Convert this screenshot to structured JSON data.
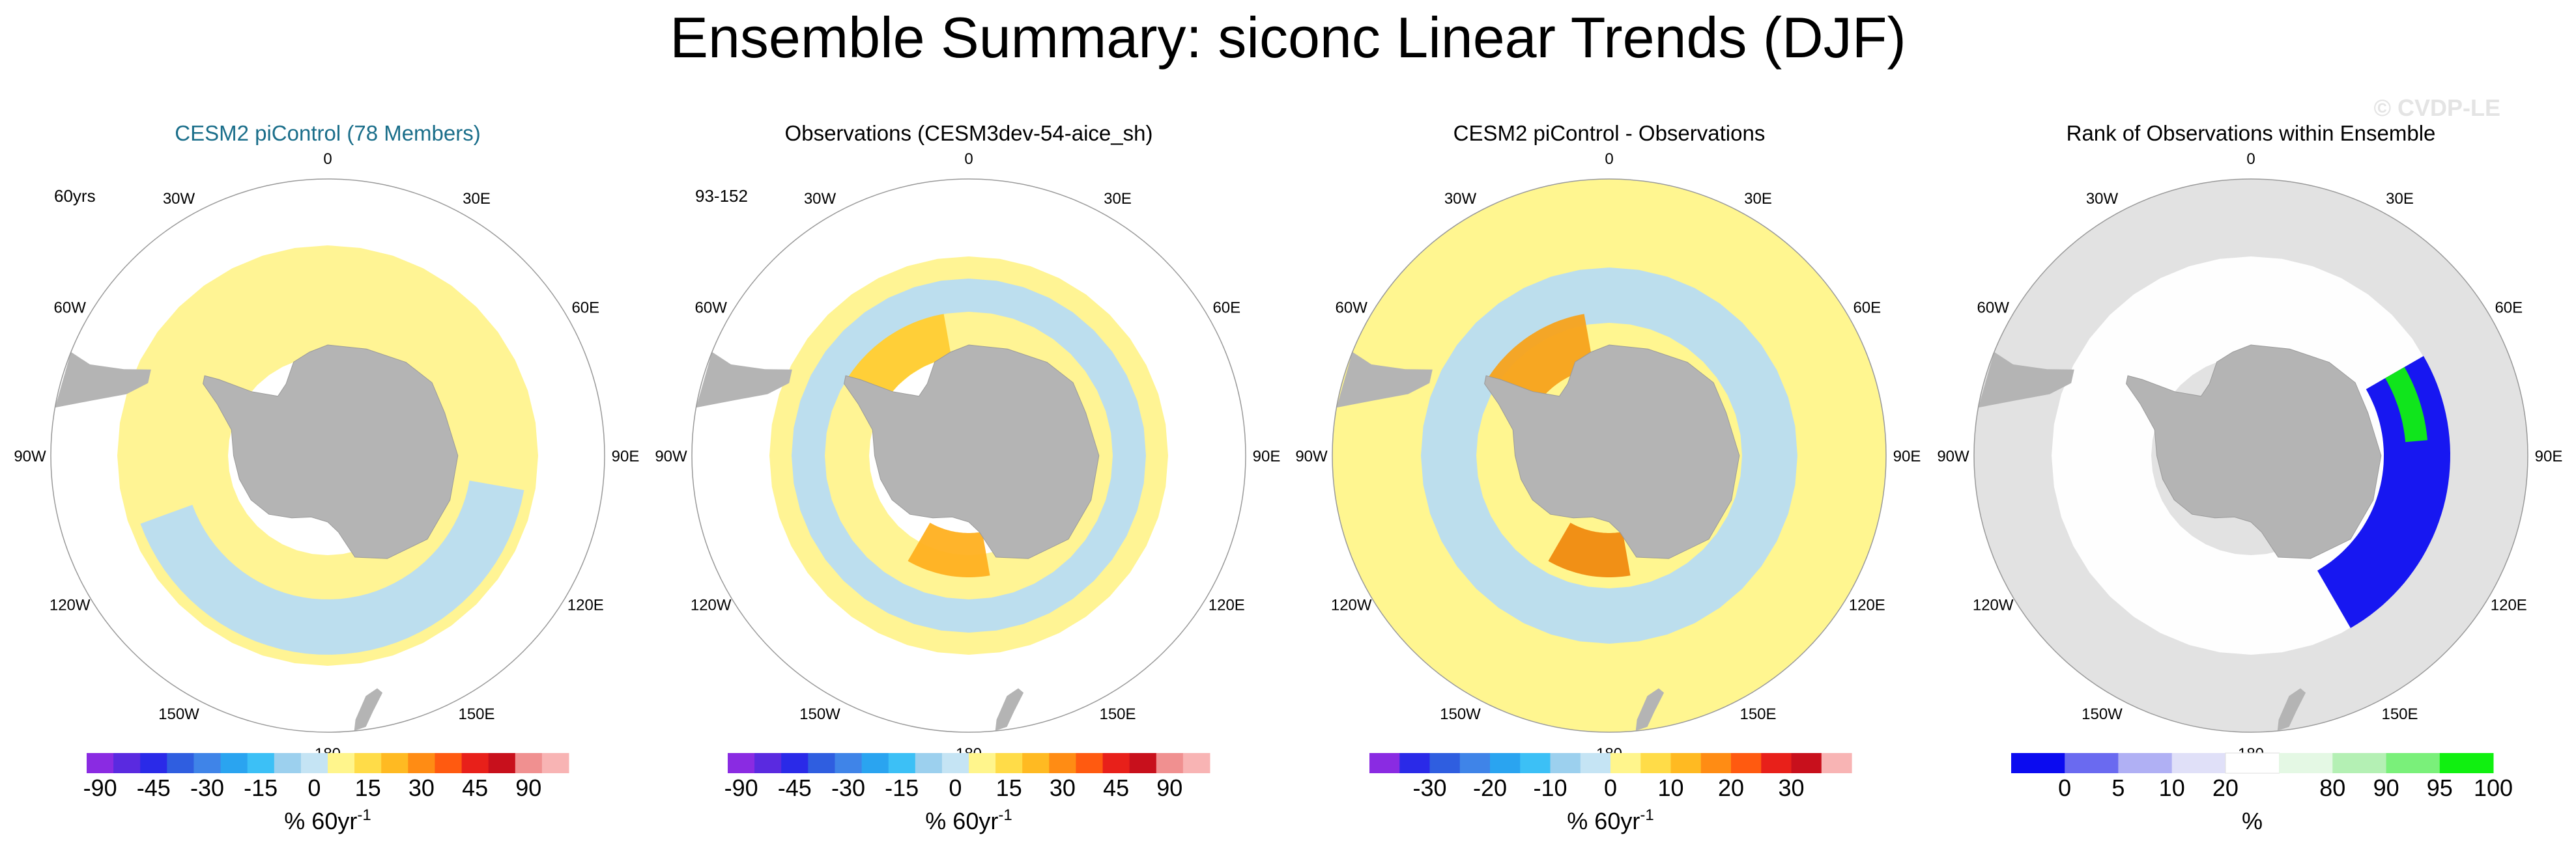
{
  "title": "Ensemble Summary: siconc Linear Trends (DJF)",
  "watermark": "© CVDP-LE",
  "colors": {
    "title_accent": "#1a6e8a",
    "land": "#b4b4b4",
    "ring_bg_yellow": "#fff9a0",
    "ring_bg_grey": "#e2e2e2"
  },
  "chart_data": [
    {
      "type": "polar-map",
      "panel": "ensemble-mean",
      "title": "CESM2 piControl (78 Members)",
      "title_highlight": true,
      "corner_label": "60yrs",
      "longitude_labels": [
        "0",
        "30E",
        "60E",
        "90E",
        "120E",
        "150E",
        "180",
        "150W",
        "120W",
        "90W",
        "60W",
        "30W"
      ],
      "colorbar": {
        "tick_labels": [
          "-90",
          "-45",
          "-30",
          "-15",
          "0",
          "15",
          "30",
          "45",
          "90"
        ],
        "tick_units": [
          0.5,
          2.5,
          4.5,
          6.5,
          8.5,
          10.5,
          12.5,
          14.5,
          16.5
        ],
        "unit_label": "% 60yr",
        "unit_superscript": "-1",
        "colors": [
          "#8a2be2",
          "#5a2ae0",
          "#2a2ae8",
          "#2f5ee0",
          "#3f84e8",
          "#2aa4f0",
          "#3cc0f6",
          "#9cd0ee",
          "#c5e4f4",
          "#fff58c",
          "#ffdc48",
          "#ffba22",
          "#ff8c14",
          "#ff5a10",
          "#e8201a",
          "#c8101c",
          "#f09090",
          "#f8b4b4"
        ]
      },
      "regions": [
        {
          "label": "slight increase (0 to 15)",
          "color": "#fff38e",
          "lon": [
            0,
            360
          ],
          "lat": [
            -72,
            -52
          ]
        },
        {
          "label": "slight decrease (-15 to 0)",
          "color": "#b8dcf2",
          "lon": [
            100,
            250
          ],
          "lat": [
            -64,
            -54
          ]
        }
      ]
    },
    {
      "type": "polar-map",
      "panel": "observations",
      "title": "Observations (CESM3dev-54-aice_sh)",
      "title_highlight": false,
      "corner_label": "93-152",
      "longitude_labels": [
        "0",
        "30E",
        "60E",
        "90E",
        "120E",
        "150E",
        "180",
        "150W",
        "120W",
        "90W",
        "60W",
        "30W"
      ],
      "colorbar": {
        "tick_labels": [
          "-90",
          "-45",
          "-30",
          "-15",
          "0",
          "15",
          "30",
          "45",
          "90"
        ],
        "tick_units": [
          0.5,
          2.5,
          4.5,
          6.5,
          8.5,
          10.5,
          12.5,
          14.5,
          16.5
        ],
        "unit_label": "% 60yr",
        "unit_superscript": "-1",
        "colors": [
          "#8a2be2",
          "#5a2ae0",
          "#2a2ae8",
          "#2f5ee0",
          "#3f84e8",
          "#2aa4f0",
          "#3cc0f6",
          "#9cd0ee",
          "#c5e4f4",
          "#fff58c",
          "#ffdc48",
          "#ffba22",
          "#ff8c14",
          "#ff5a10",
          "#e8201a",
          "#c8101c",
          "#f09090",
          "#f8b4b4"
        ]
      },
      "regions": [
        {
          "label": "mixed weak trends",
          "color": "#fff38e",
          "lon": [
            0,
            360
          ],
          "lat": [
            -72,
            -54
          ]
        },
        {
          "label": "weak decrease belts",
          "color": "#b8dcf2",
          "lon": [
            0,
            360
          ],
          "lat": [
            -64,
            -58
          ]
        },
        {
          "label": "Weddell increase",
          "color": "#ffcc33",
          "lon": [
            300,
            350
          ],
          "lat": [
            -72,
            -64
          ]
        },
        {
          "label": "Ross increase",
          "color": "#ffb020",
          "lon": [
            170,
            210
          ],
          "lat": [
            -76,
            -68
          ]
        }
      ]
    },
    {
      "type": "polar-map",
      "panel": "difference",
      "title": "CESM2 piControl - Observations",
      "title_highlight": false,
      "corner_label": "",
      "longitude_labels": [
        "0",
        "30E",
        "60E",
        "90E",
        "120E",
        "150E",
        "180",
        "150W",
        "120W",
        "90W",
        "60W",
        "30W"
      ],
      "colorbar": {
        "tick_labels": [
          "-30",
          "-20",
          "-10",
          "0",
          "10",
          "20",
          "30"
        ],
        "tick_units": [
          2,
          4,
          6,
          8,
          10,
          12,
          14
        ],
        "unit_label": "% 60yr",
        "unit_superscript": "-1",
        "colors": [
          "#8a2be2",
          "#2a2ae8",
          "#2f5ee0",
          "#3f84e8",
          "#2aa4f0",
          "#3cc0f6",
          "#9cd0ee",
          "#c5e4f4",
          "#fff58c",
          "#ffdc48",
          "#ffba22",
          "#ff8c14",
          "#ff5a10",
          "#e8201a",
          "#c8101c",
          "#f8b4b4"
        ]
      },
      "regions": [
        {
          "label": "background ~0",
          "color": "#fff68f",
          "lon": [
            0,
            360
          ],
          "lat": [
            -90,
            -40
          ]
        },
        {
          "label": "negative differences",
          "color": "#b8dcf2",
          "lon": [
            0,
            360
          ],
          "lat": [
            -66,
            -56
          ]
        },
        {
          "label": "Weddell positive",
          "color": "#f7a21c",
          "lon": [
            300,
            350
          ],
          "lat": [
            -74,
            -64
          ]
        },
        {
          "label": "Ross positive",
          "color": "#f08a10",
          "lon": [
            170,
            210
          ],
          "lat": [
            -76,
            -68
          ]
        }
      ]
    },
    {
      "type": "polar-map",
      "panel": "rank",
      "title": "Rank of Observations within Ensemble",
      "title_highlight": false,
      "corner_label": "",
      "longitude_labels": [
        "0",
        "30E",
        "60E",
        "90E",
        "120E",
        "150E",
        "180",
        "150W",
        "120W",
        "90W",
        "60W",
        "30W"
      ],
      "colorbar": {
        "tick_labels": [
          "0",
          "5",
          "10",
          "20",
          "80",
          "90",
          "95",
          "100"
        ],
        "tick_units": [
          1,
          2,
          3,
          4,
          6,
          7,
          8,
          9
        ],
        "unit_label": "%",
        "unit_superscript": "",
        "colors": [
          "#0b0bf0",
          "#6a6af0",
          "#b0b0f4",
          "#e0e0f8",
          "#ffffff",
          "#e4f8e4",
          "#b4f0b4",
          "#7af07a",
          "#10f010"
        ]
      },
      "regions": [
        {
          "label": "within ensemble",
          "color": "#ffffff",
          "lon": [
            0,
            360
          ],
          "lat": [
            -72,
            -54
          ]
        },
        {
          "label": "rank 0-5% (east Pacific sector)",
          "color": "#0b0bf0",
          "lon": [
            60,
            150
          ],
          "lat": [
            -66,
            -54
          ]
        },
        {
          "label": "rank 95-100% (Indian sector)",
          "color": "#10f010",
          "lon": [
            60,
            85
          ],
          "lat": [
            -62,
            -58
          ]
        }
      ]
    }
  ]
}
